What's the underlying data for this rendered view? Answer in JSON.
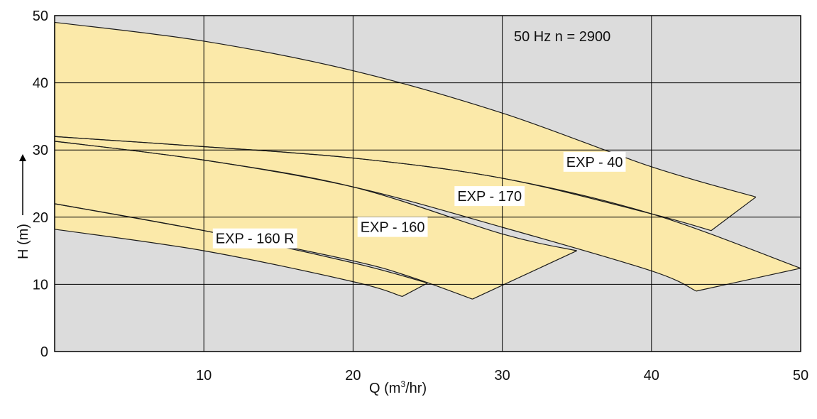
{
  "chart_data": {
    "type": "area",
    "annotation": "50 Hz n = 2900",
    "xlabel": {
      "prefix": "Q (m",
      "superscript": "3",
      "suffix": "/hr)"
    },
    "ylabel": "H (m)",
    "xlim": [
      0,
      50
    ],
    "ylim": [
      0,
      50
    ],
    "x_ticks": [
      "10",
      "20",
      "30",
      "40",
      "50"
    ],
    "y_ticks": [
      "0",
      "10",
      "20",
      "30",
      "40",
      "50"
    ],
    "grid": true,
    "plot_background": "#dcdcdc",
    "fill_color": "#fbe9a9",
    "series": [
      {
        "name": "EXP - 40",
        "upper": [
          [
            0,
            49
          ],
          [
            10,
            46.2
          ],
          [
            20,
            41.8
          ],
          [
            30,
            35.5
          ],
          [
            40,
            27.5
          ],
          [
            47,
            23
          ]
        ],
        "lower": [
          [
            0,
            32
          ],
          [
            10,
            30.5
          ],
          [
            20,
            28.8
          ],
          [
            30,
            25.8
          ],
          [
            40,
            20.5
          ],
          [
            44,
            18
          ]
        ]
      },
      {
        "name": "EXP - 170",
        "upper": [
          [
            0,
            32
          ],
          [
            10,
            30.5
          ],
          [
            20,
            28.8
          ],
          [
            30,
            25.8
          ],
          [
            40,
            20.5
          ],
          [
            50,
            12.4
          ]
        ],
        "lower": [
          [
            0,
            31.3
          ],
          [
            10,
            28.5
          ],
          [
            20,
            24.5
          ],
          [
            30,
            18.5
          ],
          [
            40,
            12
          ],
          [
            43,
            9
          ]
        ]
      },
      {
        "name": "EXP - 160",
        "upper": [
          [
            0,
            31.3
          ],
          [
            10,
            28.5
          ],
          [
            20,
            24.5
          ],
          [
            30,
            17.5
          ],
          [
            35,
            15
          ]
        ],
        "lower": [
          [
            0,
            22
          ],
          [
            10,
            18
          ],
          [
            20,
            13.5
          ],
          [
            24,
            11
          ],
          [
            28,
            7.8
          ]
        ]
      },
      {
        "name": "EXP - 160 R",
        "upper": [
          [
            0,
            22
          ],
          [
            10,
            18
          ],
          [
            20,
            13.2
          ],
          [
            25,
            10.2
          ]
        ],
        "lower": [
          [
            0,
            18.2
          ],
          [
            10,
            15
          ],
          [
            20,
            10.4
          ],
          [
            23.3,
            8.2
          ]
        ]
      }
    ]
  }
}
